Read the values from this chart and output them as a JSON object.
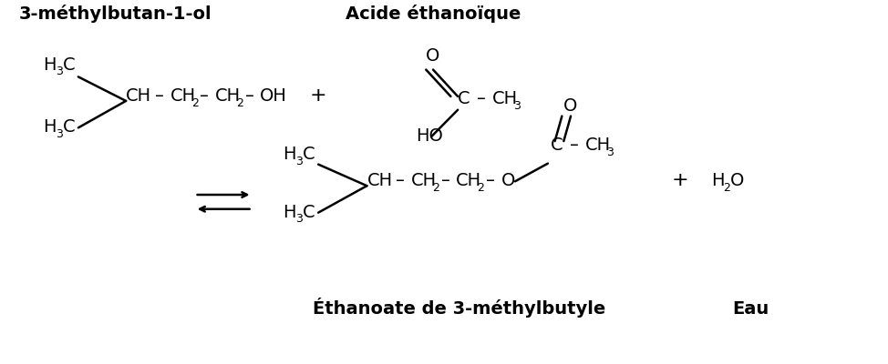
{
  "bg_color": "#ffffff",
  "text_color": "#000000",
  "title1": "3-méthylbutan-1-ol",
  "title2": "Acide éthanoïque",
  "title3": "Éthanoate de 3-méthylbutyle",
  "title4": "Eau",
  "fs": 14,
  "fs_sub": 9,
  "fs_bold": 14
}
